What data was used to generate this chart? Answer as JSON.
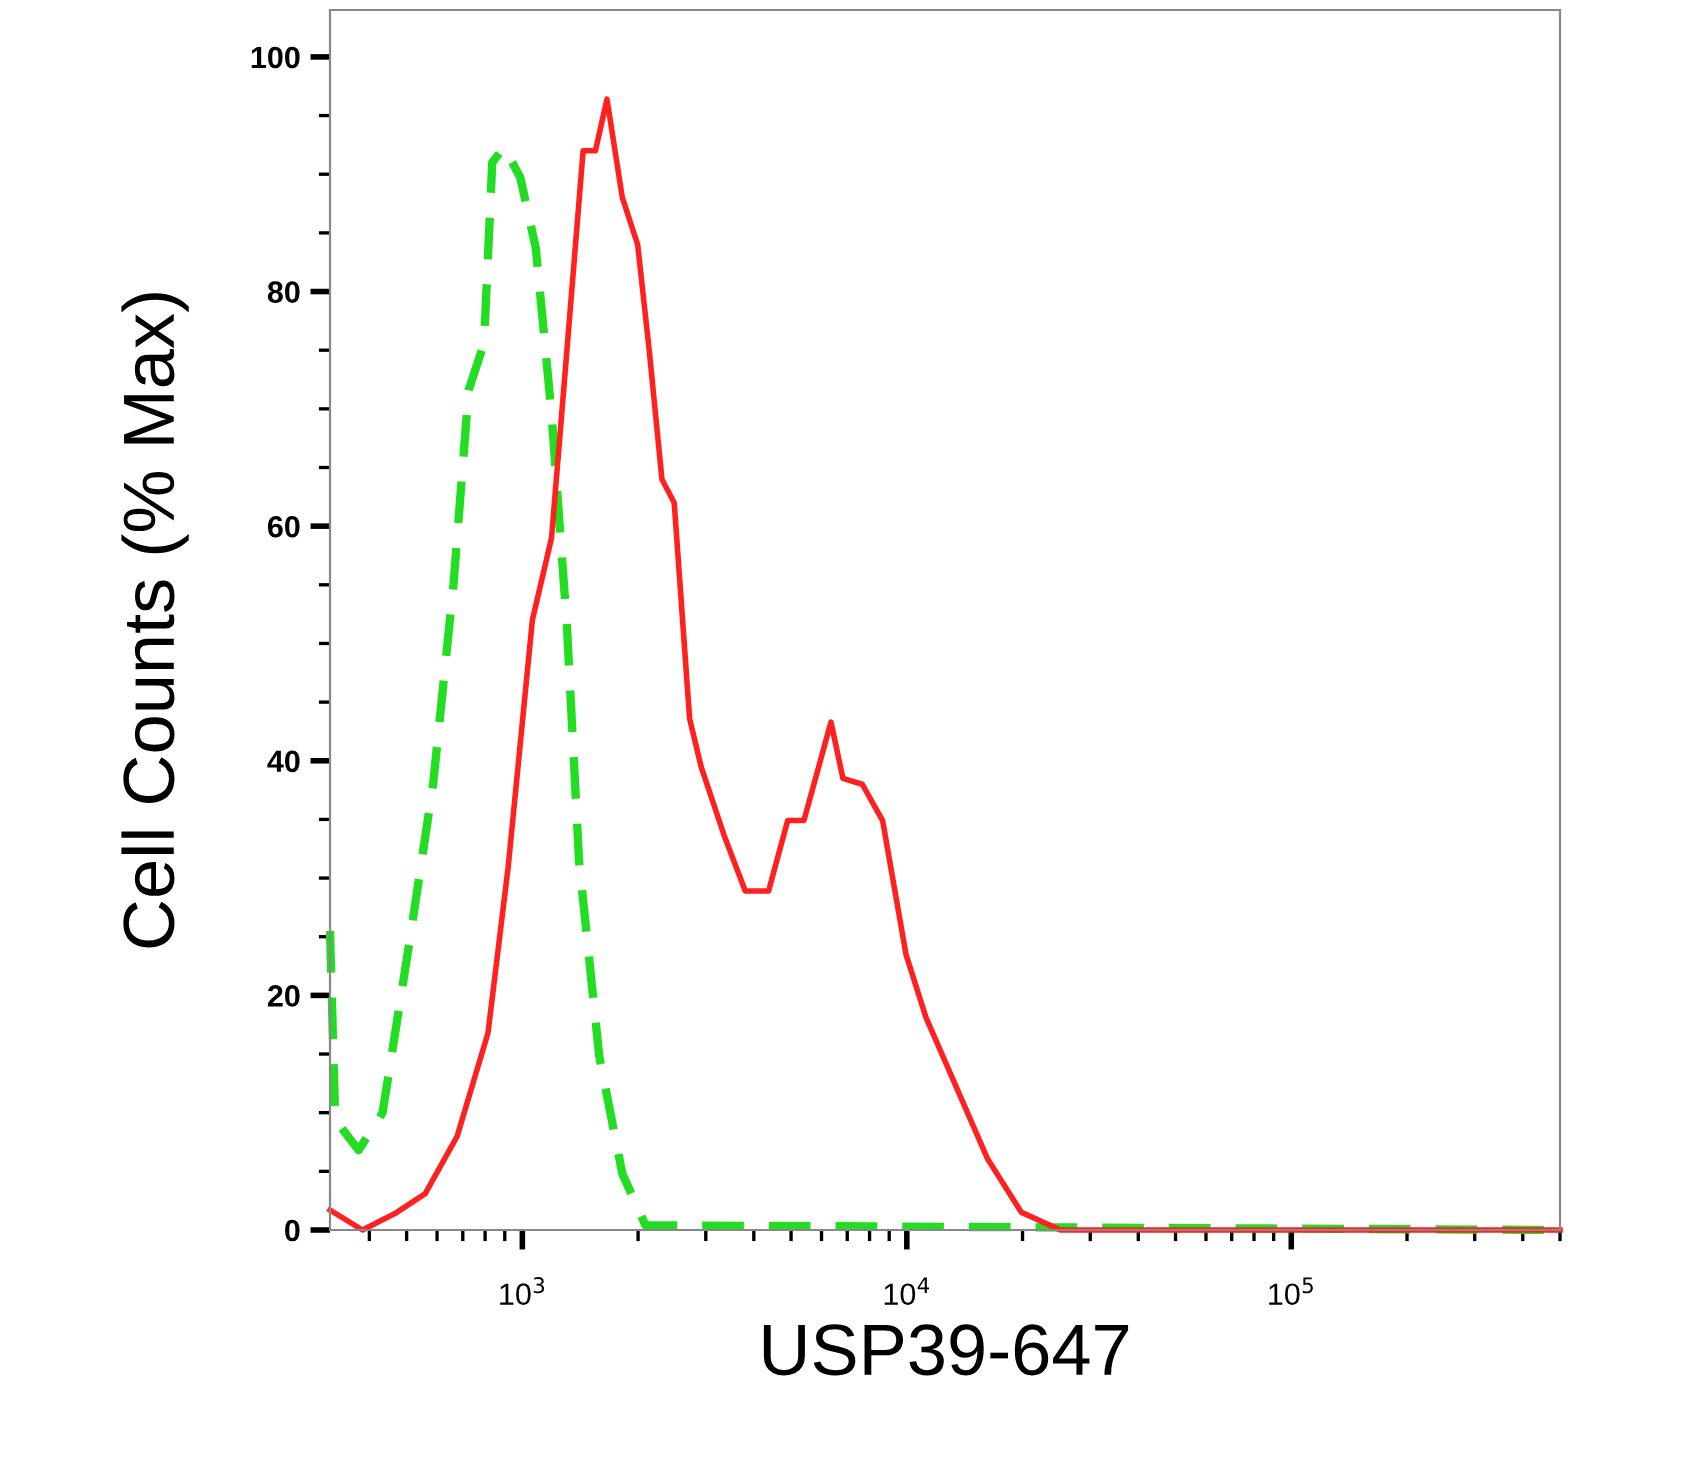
{
  "chart_data": {
    "type": "line",
    "xlabel": "USP39-647",
    "ylabel": "Cell Counts (% Max)",
    "log": "x",
    "xlim": [
      316,
      500000
    ],
    "xticks": [
      {
        "value": 1000,
        "label": "10$^{3}$"
      },
      {
        "value": 10000,
        "label": "10$^{4}$"
      },
      {
        "value": 100000,
        "label": "10$^{5}$"
      }
    ],
    "ylim": [
      0,
      104
    ],
    "yticks": [
      0,
      20,
      40,
      60,
      80,
      100
    ],
    "grid": false,
    "marker": "none",
    "series": [
      {
        "color": "#ff2020",
        "line_style": "solid",
        "x": [
          316,
          384,
          466,
          559,
          677,
          814,
          919,
          1062,
          1191,
          1306,
          1439,
          1549,
          1660,
          1820,
          1995,
          2138,
          2307,
          2483,
          2723,
          2917,
          3360,
          3800,
          4370,
          4900,
          5400,
          6350,
          6820,
          7660,
          8650,
          9950,
          11220,
          16200,
          19870,
          25100,
          500000
        ],
        "values": [
          1.7,
          0,
          1.4,
          3.1,
          8,
          16.8,
          31,
          52,
          59,
          75,
          92,
          92,
          96.4,
          88,
          84,
          75,
          64,
          62,
          43.6,
          39.5,
          33.5,
          28.9,
          28.9,
          34.9,
          34.9,
          43.3,
          38.5,
          38,
          34.9,
          23.5,
          18.1,
          6.1,
          1.5,
          0,
          0
        ]
      },
      {
        "color": "#22dd22",
        "line_style": "dashed",
        "x": [
          316,
          326,
          375,
          433,
          510,
          586,
          662,
          725,
          795,
          835,
          897,
          988,
          1084,
          1191,
          1306,
          1404,
          1585,
          1820,
          2090,
          500000
        ],
        "values": [
          25.5,
          9.4,
          6.8,
          10,
          24.8,
          38,
          55,
          71.6,
          75.6,
          91,
          92.3,
          89.7,
          83.7,
          69.6,
          51.5,
          31.5,
          14.8,
          4.8,
          0.4,
          0
        ]
      }
    ]
  }
}
